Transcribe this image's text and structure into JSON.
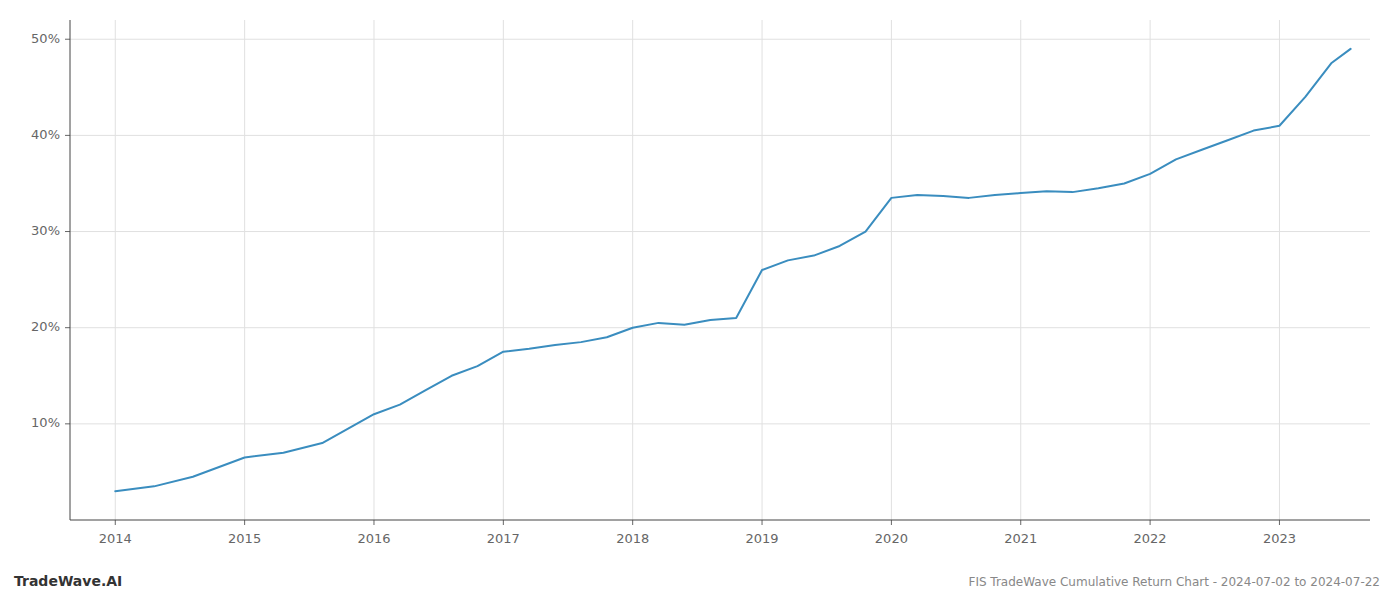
{
  "chart_data": {
    "type": "line",
    "title": "FIS TradeWave Cumulative Return Chart - 2024-07-02 to 2024-07-22",
    "annotations": [
      "TradeWave.AI"
    ],
    "x": [
      2014.0,
      2014.3,
      2014.6,
      2015.0,
      2015.3,
      2015.6,
      2016.0,
      2016.2,
      2016.4,
      2016.6,
      2016.8,
      2017.0,
      2017.2,
      2017.4,
      2017.6,
      2017.8,
      2018.0,
      2018.2,
      2018.4,
      2018.6,
      2018.8,
      2019.0,
      2019.2,
      2019.4,
      2019.6,
      2019.8,
      2020.0,
      2020.2,
      2020.4,
      2020.6,
      2020.8,
      2021.0,
      2021.2,
      2021.4,
      2021.6,
      2021.8,
      2022.0,
      2022.2,
      2022.4,
      2022.6,
      2022.8,
      2023.0,
      2023.2,
      2023.4,
      2023.55
    ],
    "values": [
      3.0,
      3.5,
      4.5,
      6.5,
      7.0,
      8.0,
      11.0,
      12.0,
      13.5,
      15.0,
      16.0,
      17.5,
      17.8,
      18.2,
      18.5,
      19.0,
      20.0,
      20.5,
      20.3,
      20.8,
      21.0,
      26.0,
      27.0,
      27.5,
      28.5,
      30.0,
      33.5,
      33.8,
      33.7,
      33.5,
      33.8,
      34.0,
      34.2,
      34.1,
      34.5,
      35.0,
      36.0,
      37.5,
      38.5,
      39.5,
      40.5,
      41.0,
      44.0,
      47.5,
      49.0
    ],
    "color": "#3a8dbf",
    "xlim": [
      2013.65,
      2023.7
    ],
    "ylim": [
      0,
      52
    ],
    "xticks": [
      2014,
      2015,
      2016,
      2017,
      2018,
      2019,
      2020,
      2021,
      2022,
      2023
    ],
    "yticks": [
      {
        "value": 10,
        "label": "10%"
      },
      {
        "value": 20,
        "label": "20%"
      },
      {
        "value": 30,
        "label": "30%"
      },
      {
        "value": 40,
        "label": "40%"
      },
      {
        "value": 50,
        "label": "50%"
      }
    ],
    "grid": true
  }
}
